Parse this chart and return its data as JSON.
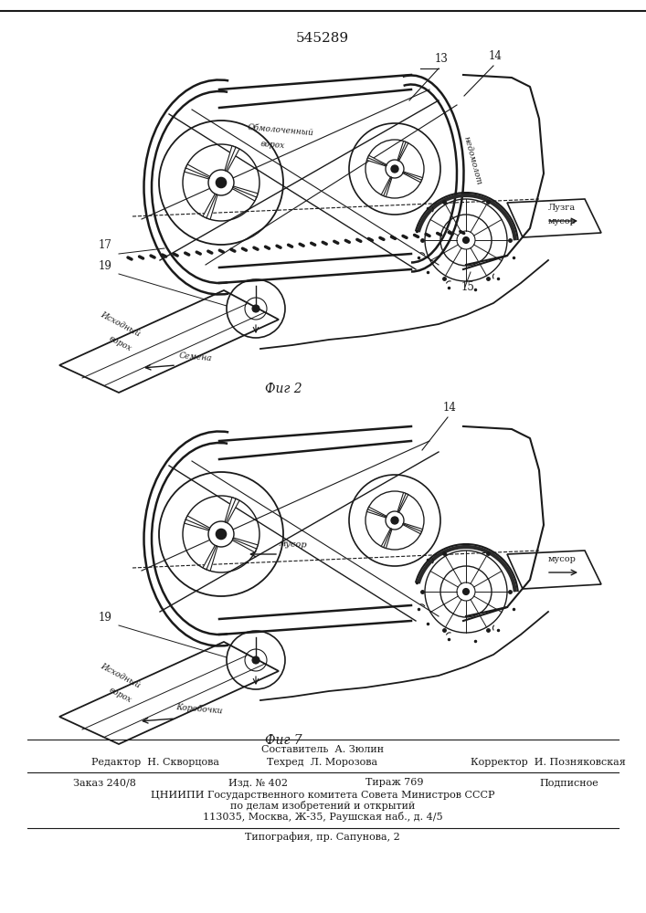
{
  "patent_number": "545289",
  "fig2_label": "Фиг 2",
  "fig7_label": "Фиг 7",
  "footer_line1": "Составитель  А. Зюлин",
  "footer_editor": "Редактор  Н. Скворцова",
  "footer_techred": "Техред  Л. Морозова",
  "footer_corrector": "Корректор  И. Позняковская",
  "footer_order": "Заказ 240/8",
  "footer_izd": "Изд. № 402",
  "footer_tirazh": "Тираж 769",
  "footer_podp": "Подписное",
  "footer_cnipi": "ЦНИИПИ Государственного комитета Совета Министров СССР",
  "footer_dela": "по делам изобретений и открытий",
  "footer_addr": "113035, Москва, Ж-35, Раушская наб., д. 4/5",
  "footer_tip": "Типография, пр. Сапунова, 2",
  "bg_color": "#ffffff",
  "line_color": "#1a1a1a"
}
